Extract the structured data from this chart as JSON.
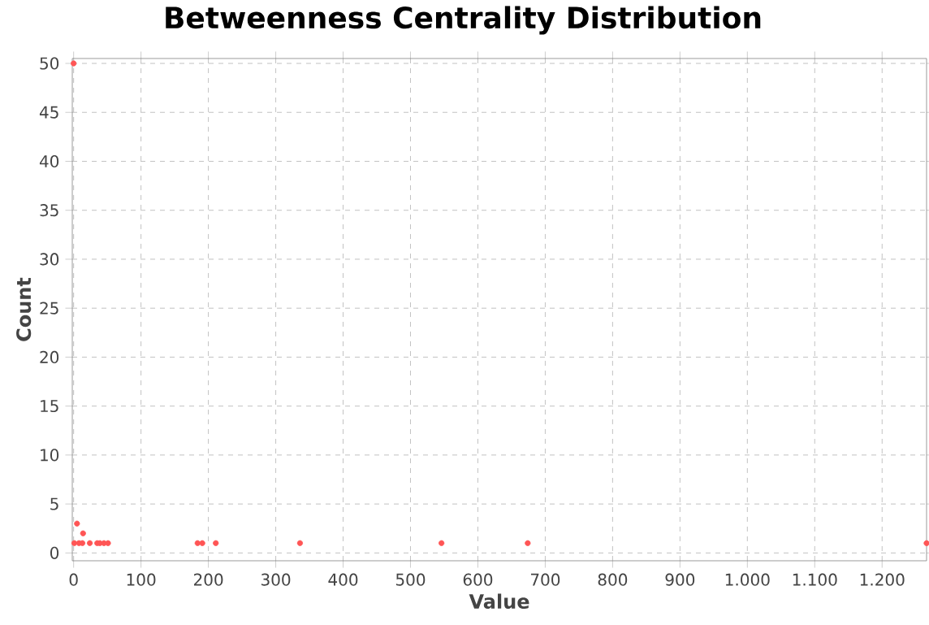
{
  "chart_data": {
    "type": "scatter",
    "title": "Betweenness Centrality Distribution",
    "xlabel": "Value",
    "ylabel": "Count",
    "x": [
      0,
      1,
      5,
      8,
      13,
      24,
      35,
      39,
      45,
      51,
      5,
      14,
      191,
      184,
      211,
      336,
      546,
      674,
      1266
    ],
    "values": [
      50,
      1,
      null,
      1,
      1,
      1,
      1,
      1,
      1,
      1,
      3,
      2,
      1,
      1,
      1,
      1,
      1,
      1,
      1
    ],
    "color": "#ff5555",
    "marker": "circle",
    "grid": true,
    "xlim": [
      -2,
      1266
    ],
    "ylim": [
      -0.8,
      50.5
    ],
    "xticks": [
      0,
      100,
      200,
      300,
      400,
      500,
      600,
      700,
      800,
      900,
      {
        "value": 1000,
        "label": "1.000"
      },
      {
        "value": 1100,
        "label": "1.100"
      },
      {
        "value": 1200,
        "label": "1.200"
      }
    ],
    "yticks": [
      0,
      5,
      10,
      15,
      20,
      25,
      30,
      35,
      40,
      45,
      50
    ]
  }
}
